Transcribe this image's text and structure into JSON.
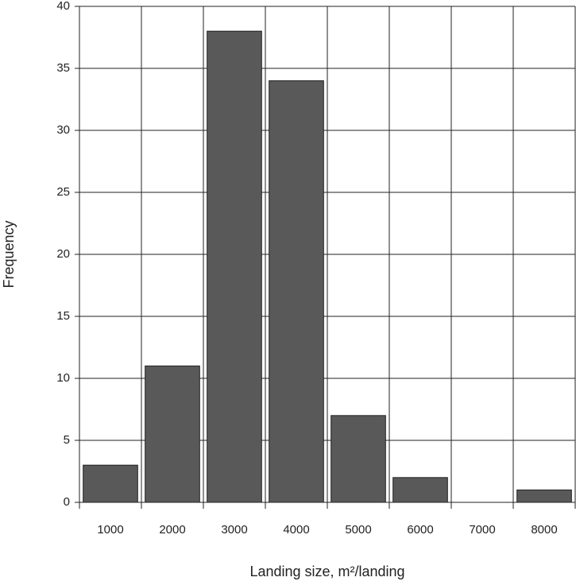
{
  "chart_data": {
    "type": "bar",
    "x_label": "Landing size, m²/landing",
    "y_label": "Frequency",
    "categories": [
      "1000",
      "2000",
      "3000",
      "4000",
      "5000",
      "6000",
      "7000",
      "8000"
    ],
    "values": [
      3,
      11,
      38,
      34,
      7,
      2,
      0,
      1
    ],
    "color": "#595959",
    "ylim": [
      0,
      40
    ],
    "yticks": [
      0,
      5,
      10,
      15,
      20,
      25,
      30,
      35,
      40
    ],
    "grid": true
  }
}
